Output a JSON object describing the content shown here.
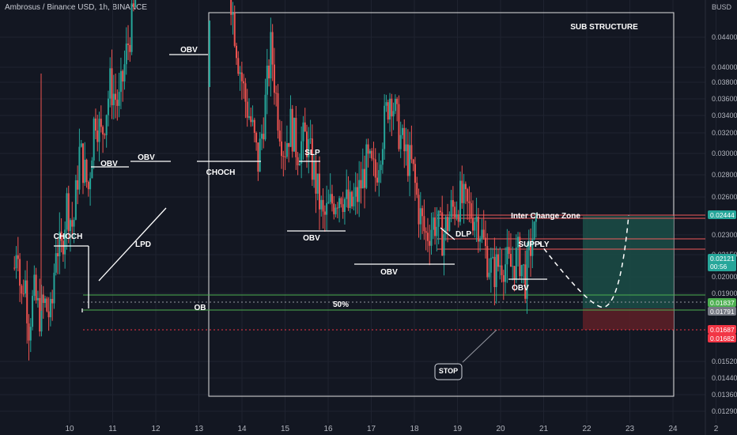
{
  "symbol_title": "Ambrosus / Binance USD, 1h, BINANCE",
  "currency": "BUSD",
  "colors": {
    "background": "#131722",
    "up": "#26a69a",
    "down": "#ef5350",
    "grid": "#1f2330",
    "annotation": "#ffffff",
    "zone_line": "#f05a5a",
    "ob_line": "#4caf50",
    "stop_line": "#f23645",
    "target_fill": "#1b4d46",
    "stop_fill": "#5b1f27"
  },
  "chart_data": {
    "type": "candlestick",
    "xlabel": "",
    "ylabel": "",
    "x_ticks": [
      "10",
      "11",
      "12",
      "13",
      "14",
      "15",
      "16",
      "17",
      "18",
      "19",
      "20",
      "21",
      "22",
      "23",
      "24",
      "2"
    ],
    "y_ticks": [
      "0.04400",
      "0.04000",
      "0.03800",
      "0.03600",
      "0.03400",
      "0.03200",
      "0.03000",
      "0.02800",
      "0.02600",
      "0.02300",
      "0.02150",
      "0.02000",
      "0.01900",
      "0.01520",
      "0.01440",
      "0.01360",
      "0.01290"
    ],
    "ylim": [
      0.0126,
      0.0458
    ],
    "xlim": [
      9.4,
      25.1
    ],
    "series": [
      {
        "name": "",
        "anchors": [
          [
            9.55,
            0.02
          ],
          [
            9.62,
            0.0215
          ],
          [
            9.7,
            0.0185
          ],
          [
            9.78,
            0.0198
          ],
          [
            9.88,
            0.0178
          ],
          [
            10.0,
            0.019
          ],
          [
            10.12,
            0.0182
          ],
          [
            10.25,
            0.0186
          ],
          [
            10.4,
            0.018
          ],
          [
            10.5,
            0.021
          ],
          [
            10.62,
            0.0205
          ],
          [
            10.75,
            0.0225
          ],
          [
            10.9,
            0.0215
          ],
          [
            11.05,
            0.0245
          ],
          [
            11.25,
            0.023
          ],
          [
            11.4,
            0.026
          ],
          [
            11.55,
            0.025
          ],
          [
            11.75,
            0.027
          ],
          [
            11.95,
            0.0262
          ],
          [
            12.15,
            0.0285
          ],
          [
            12.3,
            0.0298
          ],
          [
            12.4,
            0.037
          ],
          [
            12.55,
            0.0345
          ],
          [
            12.7,
            0.0375
          ],
          [
            12.85,
            0.033
          ],
          [
            13.0,
            0.0365
          ],
          [
            13.15,
            0.033
          ],
          [
            13.3,
            0.042
          ],
          [
            13.45,
            0.038
          ],
          [
            13.6,
            0.0395
          ],
          [
            13.75,
            0.035
          ],
          [
            13.9,
            0.0365
          ],
          [
            14.05,
            0.0385
          ],
          [
            14.2,
            0.035
          ],
          [
            14.4,
            0.033
          ],
          [
            14.55,
            0.03
          ],
          [
            14.7,
            0.028
          ],
          [
            14.85,
            0.0265
          ],
          [
            15.0,
            0.0255
          ],
          [
            15.15,
            0.024
          ],
          [
            15.3,
            0.026
          ],
          [
            15.45,
            0.0285
          ],
          [
            15.6,
            0.026
          ],
          [
            15.75,
            0.0245
          ],
          [
            15.9,
            0.0255
          ],
          [
            16.05,
            0.0245
          ],
          [
            16.25,
            0.025
          ],
          [
            16.45,
            0.0235
          ],
          [
            16.65,
            0.0218
          ],
          [
            16.85,
            0.0225
          ],
          [
            17.05,
            0.023
          ],
          [
            17.25,
            0.0222
          ],
          [
            17.45,
            0.0228
          ],
          [
            17.65,
            0.024
          ],
          [
            17.85,
            0.0235
          ],
          [
            18.05,
            0.0255
          ],
          [
            18.2,
            0.0268
          ],
          [
            18.35,
            0.0255
          ],
          [
            18.5,
            0.0245
          ],
          [
            18.7,
            0.0238
          ],
          [
            18.85,
            0.0222
          ],
          [
            19.0,
            0.0212
          ],
          [
            19.2,
            0.0218
          ],
          [
            19.4,
            0.0212
          ],
          [
            19.6,
            0.0222
          ],
          [
            19.8,
            0.0226
          ],
          [
            20.0,
            0.0222
          ],
          [
            20.2,
            0.0219
          ],
          [
            20.4,
            0.0205
          ],
          [
            20.55,
            0.0198
          ],
          [
            20.75,
            0.0203
          ],
          [
            20.95,
            0.02
          ],
          [
            21.15,
            0.0205
          ],
          [
            21.3,
            0.0195
          ],
          [
            21.45,
            0.0212
          ],
          [
            21.55,
            0.02121
          ]
        ],
        "extremes": [
          [
            10.8,
            0.0205,
            0.0175
          ],
          [
            13.3,
            0.0448,
            0.04
          ],
          [
            9.3,
            0.0404,
            0.0185
          ]
        ]
      }
    ],
    "projection": [
      [
        21.6,
        0.021
      ],
      [
        22.1,
        0.0195
      ],
      [
        22.6,
        0.0183
      ],
      [
        23.0,
        0.02
      ],
      [
        23.35,
        0.0246
      ]
    ],
    "levels": [
      {
        "price": 0.02444,
        "label": "0.02444"
      },
      {
        "price": 0.02121,
        "label": "0.02121",
        "sublabel": "00:56"
      },
      {
        "price": 0.01837,
        "label": "0.01837"
      },
      {
        "price": 0.01791,
        "label": "0.01791"
      },
      {
        "price": 0.01687,
        "label": "0.01687"
      },
      {
        "price": 0.01682,
        "label": "0.01682"
      }
    ],
    "annotations": [
      {
        "text": "SUB STRUCTURE",
        "x": 23.0,
        "y": 0.0443
      },
      {
        "text": "CHOCH",
        "x": 10.0,
        "y": 0.0228
      },
      {
        "text": "OBV",
        "x": 10.9,
        "y": 0.0291
      },
      {
        "text": "OBV",
        "x": 11.75,
        "y": 0.0297
      },
      {
        "text": "LPD",
        "x": 11.75,
        "y": 0.0218
      },
      {
        "text": "OBV",
        "x": 12.75,
        "y": 0.0426
      },
      {
        "text": "CHOCH",
        "x": 13.5,
        "y": 0.0286
      },
      {
        "text": "SLP",
        "x": 15.4,
        "y": 0.0301
      },
      {
        "text": "OBV",
        "x": 15.75,
        "y": 0.0227
      },
      {
        "text": "OBV",
        "x": 17.6,
        "y": 0.0203
      },
      {
        "text": "DLP",
        "x": 19.3,
        "y": 0.0231
      },
      {
        "text": "Inter Change Zone",
        "x": 21.9,
        "y": 0.0248
      },
      {
        "text": "SUPPLY",
        "x": 21.3,
        "y": 0.0223
      },
      {
        "text": "OBV",
        "x": 20.6,
        "y": 0.0189
      },
      {
        "text": "OB",
        "x": 13.0,
        "y": 0.0176
      },
      {
        "text": "50%",
        "x": 16.4,
        "y": 0.0179
      },
      {
        "text": "STOP",
        "x": 19.0,
        "y": 0.0157
      }
    ]
  }
}
